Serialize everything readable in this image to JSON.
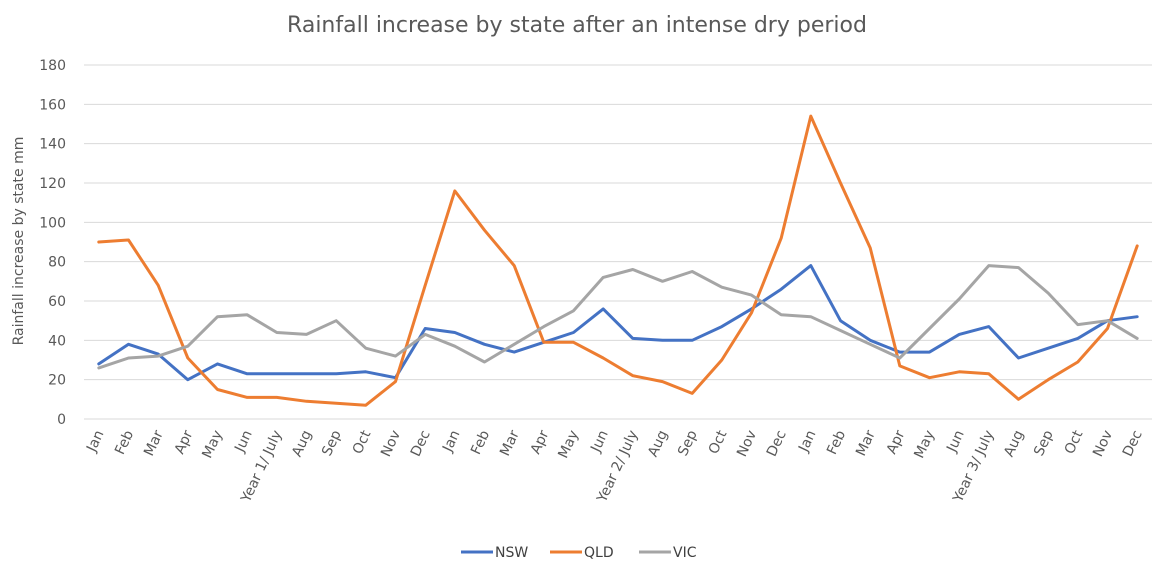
{
  "chart_data": {
    "type": "line",
    "title": "Rainfall increase by state after an intense dry period",
    "xlabel": "",
    "ylabel": "Rainfall increase by state mm",
    "ylim": [
      0,
      180
    ],
    "yticks": [
      0,
      20,
      40,
      60,
      80,
      100,
      120,
      140,
      160,
      180
    ],
    "grid": true,
    "legend_position": "bottom",
    "categories": [
      "Jan",
      "Feb",
      "Mar",
      "Apr",
      "May",
      "Jun",
      "Year 1/ July",
      "Aug",
      "Sep",
      "Oct",
      "Nov",
      "Dec",
      "Jan",
      "Feb",
      "Mar",
      "Apr",
      "May",
      "Jun",
      "Year 2/ July",
      "Aug",
      "Sep",
      "Oct",
      "Nov",
      "Dec",
      "Jan",
      "Feb",
      "Mar",
      "Apr",
      "May",
      "Jun",
      "Year 3/ July",
      "Aug",
      "Sep",
      "Oct",
      "Nov",
      "Dec"
    ],
    "series": [
      {
        "name": "NSW",
        "color": "#4472c4",
        "values": [
          28,
          38,
          33,
          20,
          28,
          23,
          23,
          23,
          23,
          24,
          21,
          46,
          44,
          38,
          34,
          39,
          44,
          56,
          41,
          40,
          40,
          47,
          56,
          66,
          78,
          50,
          40,
          34,
          34,
          43,
          47,
          31,
          36,
          41,
          50,
          52
        ]
      },
      {
        "name": "QLD",
        "color": "#ed7d31",
        "values": [
          90,
          91,
          68,
          31,
          15,
          11,
          11,
          9,
          8,
          7,
          19,
          68,
          116,
          96,
          78,
          39,
          39,
          31,
          22,
          19,
          13,
          30,
          54,
          92,
          154,
          120,
          87,
          27,
          21,
          24,
          23,
          10,
          20,
          29,
          46,
          88
        ]
      },
      {
        "name": "VIC",
        "color": "#a5a5a5",
        "values": [
          26,
          31,
          32,
          37,
          52,
          53,
          44,
          43,
          50,
          36,
          32,
          43,
          37,
          29,
          38,
          47,
          55,
          72,
          76,
          70,
          75,
          67,
          63,
          53,
          52,
          45,
          38,
          31,
          46,
          61,
          78,
          77,
          64,
          48,
          50,
          41
        ]
      }
    ]
  }
}
